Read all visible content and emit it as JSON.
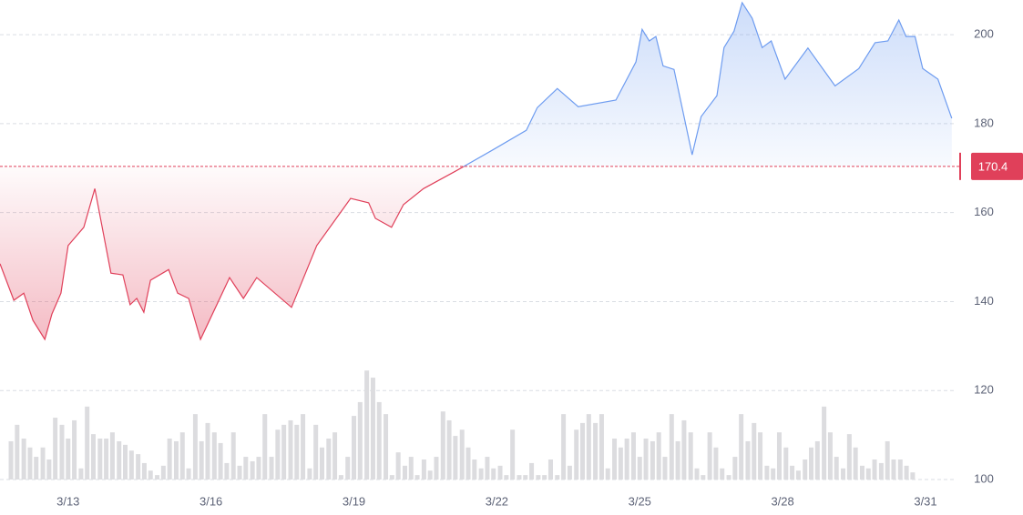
{
  "chart_data": {
    "type": "baseline-area",
    "xlim": [
      11.57,
      31.65
    ],
    "ylim": [
      100,
      207.8
    ],
    "xticks": [
      {
        "value": 13,
        "label": "3/13"
      },
      {
        "value": 16,
        "label": "3/16"
      },
      {
        "value": 19,
        "label": "3/19"
      },
      {
        "value": 22,
        "label": "3/22"
      },
      {
        "value": 25,
        "label": "3/25"
      },
      {
        "value": 28,
        "label": "3/28"
      },
      {
        "value": 31,
        "label": "3/31"
      }
    ],
    "yticks": [
      100,
      120,
      140,
      160,
      180,
      200
    ],
    "grid": true,
    "baseline": 170.4,
    "up_color": "#6e9cf0",
    "down_color": "#e0405a",
    "series": [
      {
        "type": "line",
        "x": [
          11.57,
          11.86,
          12.07,
          12.26,
          12.51,
          12.66,
          12.85,
          13.0,
          13.33,
          13.56,
          13.9,
          14.15,
          14.3,
          14.44,
          14.59,
          14.73,
          15.11,
          15.3,
          15.53,
          15.78,
          16.39,
          16.68,
          16.96,
          17.69,
          18.22,
          18.93,
          19.31,
          19.45,
          19.79,
          20.04,
          20.46,
          21.13,
          21.9,
          22.62,
          22.85,
          23.27,
          23.71,
          24.5,
          24.92,
          25.05,
          25.2,
          25.34,
          25.49,
          25.72,
          26.1,
          26.29,
          26.62,
          26.77,
          26.98,
          27.15,
          27.36,
          27.57,
          27.76,
          28.05,
          28.53,
          29.1,
          29.6,
          29.94,
          30.21,
          30.44,
          30.59,
          30.78,
          30.94,
          31.26,
          31.55
        ],
        "values": [
          148.5,
          140.3,
          141.9,
          135.8,
          131.5,
          137.2,
          141.9,
          152.6,
          156.7,
          165.4,
          146.4,
          146.0,
          139.3,
          140.7,
          137.6,
          144.8,
          147.2,
          141.9,
          140.7,
          131.5,
          145.4,
          140.7,
          145.4,
          138.7,
          152.6,
          163.2,
          162.2,
          158.7,
          156.7,
          161.8,
          165.4,
          169.3,
          174.0,
          178.5,
          183.6,
          187.9,
          183.8,
          185.3,
          193.9,
          201.2,
          198.6,
          199.6,
          193.0,
          192.2,
          173.0,
          181.6,
          186.3,
          197.1,
          200.8,
          207.2,
          203.7,
          197.1,
          198.6,
          190.0,
          197.0,
          188.5,
          192.4,
          198.2,
          198.6,
          203.3,
          199.6,
          199.6,
          192.4,
          190.0,
          181.2
        ]
      },
      {
        "type": "bar",
        "color": "#dcdcdf",
        "x": [
          11.8,
          11.93,
          12.07,
          12.2,
          12.33,
          12.47,
          12.6,
          12.73,
          12.87,
          13.0,
          13.13,
          13.27,
          13.4,
          13.53,
          13.67,
          13.8,
          13.93,
          14.07,
          14.2,
          14.33,
          14.47,
          14.6,
          14.73,
          14.87,
          15.0,
          15.13,
          15.27,
          15.4,
          15.53,
          15.67,
          15.8,
          15.93,
          16.07,
          16.2,
          16.33,
          16.47,
          16.6,
          16.73,
          16.87,
          17.0,
          17.13,
          17.27,
          17.4,
          17.53,
          17.67,
          17.8,
          17.93,
          18.07,
          18.2,
          18.33,
          18.47,
          18.6,
          18.73,
          18.87,
          19.0,
          19.13,
          19.27,
          19.4,
          19.53,
          19.67,
          19.8,
          19.93,
          20.07,
          20.2,
          20.33,
          20.47,
          20.6,
          20.73,
          20.87,
          21.0,
          21.13,
          21.27,
          21.4,
          21.53,
          21.67,
          21.8,
          21.93,
          22.07,
          22.2,
          22.33,
          22.47,
          22.6,
          22.73,
          22.87,
          23.0,
          23.13,
          23.27,
          23.4,
          23.53,
          23.67,
          23.8,
          23.93,
          24.07,
          24.2,
          24.33,
          24.47,
          24.6,
          24.73,
          24.87,
          25.0,
          25.13,
          25.27,
          25.4,
          25.53,
          25.67,
          25.8,
          25.93,
          26.07,
          26.2,
          26.33,
          26.47,
          26.6,
          26.73,
          26.87,
          27.0,
          27.13,
          27.27,
          27.4,
          27.53,
          27.67,
          27.8,
          27.93,
          28.07,
          28.2,
          28.33,
          28.47,
          28.6,
          28.73,
          28.87,
          29.0,
          29.13,
          29.27,
          29.4,
          29.53,
          29.67,
          29.8,
          29.93,
          30.07,
          30.2,
          30.33,
          30.47,
          30.6,
          30.73
        ],
        "values": [
          108.6,
          112.3,
          109.2,
          107.2,
          105.1,
          107.2,
          104.5,
          113.9,
          112.3,
          109.2,
          113.3,
          102.5,
          116.4,
          110.2,
          109.2,
          109.2,
          110.6,
          108.6,
          107.8,
          106.5,
          105.7,
          103.7,
          102.0,
          101.0,
          103.1,
          109.2,
          108.6,
          110.6,
          102.5,
          114.7,
          108.6,
          112.7,
          110.6,
          108.2,
          103.7,
          110.6,
          103.1,
          105.1,
          104.1,
          105.1,
          114.7,
          105.1,
          111.2,
          112.3,
          113.3,
          112.3,
          114.7,
          102.5,
          112.3,
          107.2,
          109.2,
          110.6,
          101.0,
          105.1,
          114.3,
          117.4,
          124.5,
          122.9,
          117.4,
          114.7,
          101.0,
          106.1,
          103.1,
          105.1,
          101.0,
          104.5,
          102.0,
          105.1,
          115.3,
          113.3,
          109.8,
          111.2,
          107.2,
          104.5,
          102.5,
          105.1,
          102.5,
          103.1,
          101.0,
          111.2,
          101.0,
          101.0,
          103.7,
          101.0,
          101.0,
          104.5,
          101.0,
          114.7,
          103.1,
          111.2,
          112.7,
          114.7,
          112.7,
          114.7,
          102.5,
          109.2,
          107.2,
          109.2,
          110.6,
          105.1,
          109.2,
          108.6,
          110.6,
          105.1,
          114.7,
          108.6,
          113.3,
          110.6,
          102.5,
          101.0,
          110.6,
          107.2,
          102.5,
          101.0,
          105.1,
          114.7,
          108.6,
          112.7,
          110.6,
          103.1,
          102.5,
          110.6,
          107.2,
          103.1,
          102.0,
          104.5,
          107.2,
          108.6,
          116.4,
          110.6,
          105.1,
          102.5,
          110.2,
          107.2,
          103.1,
          102.5,
          104.5,
          103.7,
          108.6,
          104.5,
          104.5,
          103.1,
          101.6
        ]
      }
    ]
  }
}
